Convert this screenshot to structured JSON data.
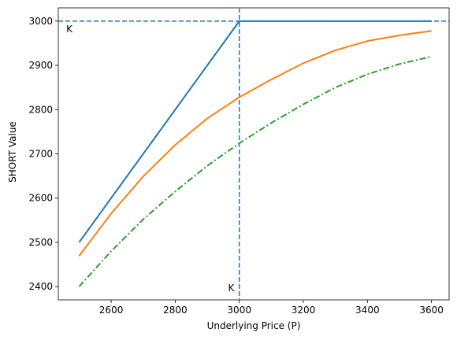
{
  "chart_data": {
    "type": "line",
    "xlabel": "Underlying Price (P)",
    "ylabel": "SHORT Value",
    "xlim": [
      2435,
      3655
    ],
    "ylim": [
      2370,
      3030
    ],
    "xticks": [
      2600,
      2800,
      3000,
      3200,
      3400,
      3600
    ],
    "yticks": [
      2400,
      2500,
      2600,
      2700,
      2800,
      2900,
      3000
    ],
    "grid": false,
    "legend": "none",
    "series": [
      {
        "style": "solid",
        "color": "#1f77b4",
        "x": [
          2500,
          3000,
          3600
        ],
        "y": [
          2500,
          3000,
          3000
        ]
      },
      {
        "style": "solid",
        "color": "#ff7f0e",
        "x": [
          2500,
          2600,
          2700,
          2800,
          2900,
          3000,
          3100,
          3200,
          3300,
          3400,
          3500,
          3600
        ],
        "y": [
          2469,
          2565,
          2649,
          2720,
          2780,
          2828,
          2868,
          2905,
          2934,
          2955,
          2968,
          2978
        ]
      },
      {
        "style": "dashdot",
        "color": "#2ca02c",
        "x": [
          2500,
          2600,
          2700,
          2800,
          2900,
          3000,
          3100,
          3200,
          3300,
          3400,
          3500,
          3600
        ],
        "y": [
          2400,
          2480,
          2552,
          2615,
          2673,
          2724,
          2770,
          2812,
          2850,
          2880,
          2903,
          2920
        ]
      }
    ],
    "reference_lines": [
      {
        "orientation": "vertical",
        "value": 3000,
        "style": "dashed",
        "color": "#1f77b4"
      },
      {
        "orientation": "horizontal",
        "value": 3000,
        "style": "dashed",
        "color": "#1f77b4"
      }
    ],
    "annotations": [
      {
        "text": "K",
        "x": 2460,
        "y": 2975
      },
      {
        "text": "K",
        "x": 2965,
        "y": 2390
      }
    ]
  }
}
